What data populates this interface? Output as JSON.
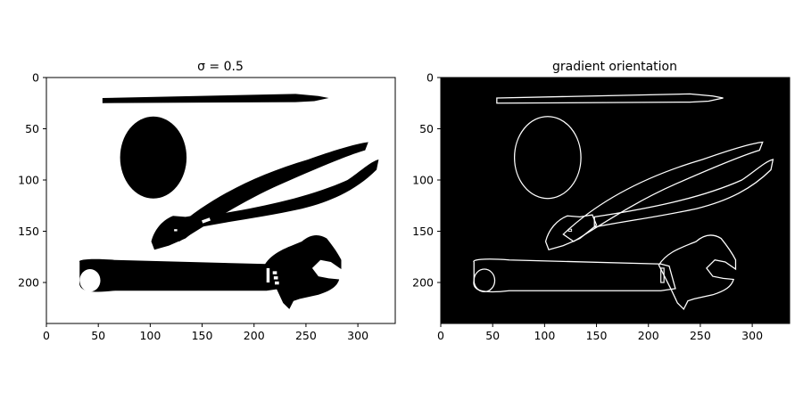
{
  "panels": [
    {
      "title": "σ = 0.5",
      "style": "binary-image",
      "x_ticks": [
        "0",
        "50",
        "100",
        "150",
        "200",
        "250",
        "300"
      ],
      "y_ticks": [
        "0",
        "50",
        "100",
        "150",
        "200"
      ],
      "image_extent": {
        "width_units": 336,
        "height_units": 240
      }
    },
    {
      "title": "gradient orientation",
      "style": "edge-map",
      "x_ticks": [
        "0",
        "50",
        "100",
        "150",
        "200",
        "250",
        "300"
      ],
      "y_ticks": [
        "0",
        "50",
        "100",
        "150",
        "200"
      ],
      "image_extent": {
        "width_units": 336,
        "height_units": 240
      }
    }
  ],
  "objects": [
    "pencil",
    "ellipse",
    "pliers",
    "wrench"
  ],
  "colors": {
    "foreground": "#000000",
    "background": "#ffffff",
    "edge": "#ffffff"
  }
}
